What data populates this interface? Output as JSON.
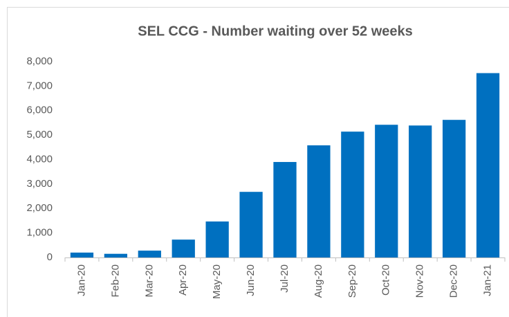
{
  "chart_data": {
    "type": "bar",
    "title": "SEL CCG - Number waiting over 52 weeks",
    "categories": [
      "Jan-20",
      "Feb-20",
      "Mar-20",
      "Apr-20",
      "May-20",
      "Jun-20",
      "Jul-20",
      "Aug-20",
      "Sep-20",
      "Oct-20",
      "Nov-20",
      "Dec-20",
      "Jan-21"
    ],
    "values": [
      200,
      150,
      280,
      730,
      1470,
      2680,
      3900,
      4580,
      5140,
      5420,
      5390,
      5620,
      7530
    ],
    "color": "#0070c0",
    "ylim": [
      0,
      8000
    ],
    "yticks": [
      0,
      {
        "value": 1000,
        "label": "1,000"
      },
      {
        "value": 2000,
        "label": "2,000"
      },
      {
        "value": 3000,
        "label": "3,000"
      },
      {
        "value": 4000,
        "label": "4,000"
      },
      {
        "value": 5000,
        "label": "5,000"
      },
      {
        "value": 6000,
        "label": "6,000"
      },
      {
        "value": 7000,
        "label": "7,000"
      },
      {
        "value": 8000,
        "label": "8,000"
      }
    ],
    "grid": false
  }
}
